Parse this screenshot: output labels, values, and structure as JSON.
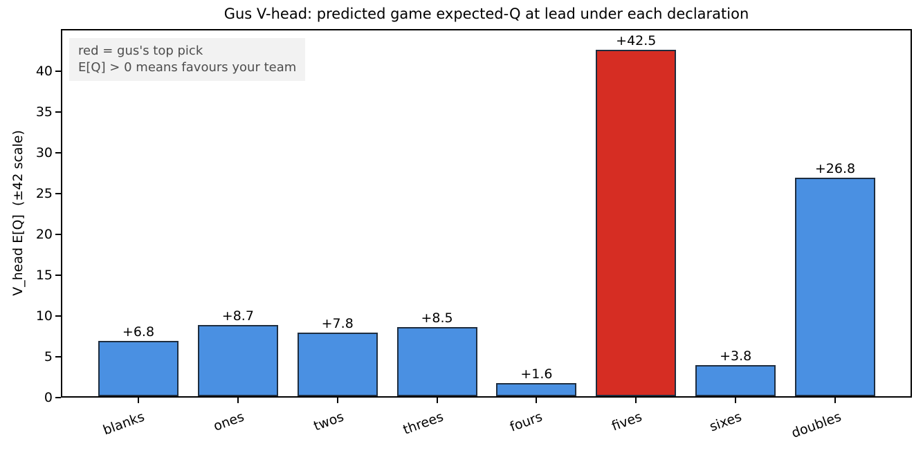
{
  "title": "Gus V-head: predicted game expected-Q at lead under each declaration",
  "annotation": {
    "line1": "red = gus's top pick",
    "line2": "E[Q] > 0 means favours your team"
  },
  "chart_data": {
    "type": "bar",
    "title": "Gus V-head: predicted game expected-Q at lead under each declaration",
    "xlabel": "",
    "ylabel": "V_head E[Q]  (±42 scale)",
    "categories": [
      "blanks",
      "ones",
      "twos",
      "threes",
      "fours",
      "fives",
      "sixes",
      "doubles"
    ],
    "values": [
      6.8,
      8.7,
      7.8,
      8.5,
      1.6,
      42.5,
      3.8,
      26.8
    ],
    "bar_labels": [
      "+6.8",
      "+8.7",
      "+7.8",
      "+8.5",
      "+1.6",
      "+42.5",
      "+3.8",
      "+26.8"
    ],
    "highlight_index": 5,
    "highlight_category": "fives",
    "yticks": [
      0,
      5,
      10,
      15,
      20,
      25,
      30,
      35,
      40
    ],
    "ylim": [
      0,
      45.2
    ],
    "grid": false,
    "legend": "none",
    "xtick_rotation": 20,
    "colors": {
      "bar": "#4a90e2",
      "highlight": "#d62d23",
      "edge": "#1e2d3f",
      "annotation_bg": "#f2f2f2",
      "annotation_text": "#4d4d4d"
    }
  }
}
